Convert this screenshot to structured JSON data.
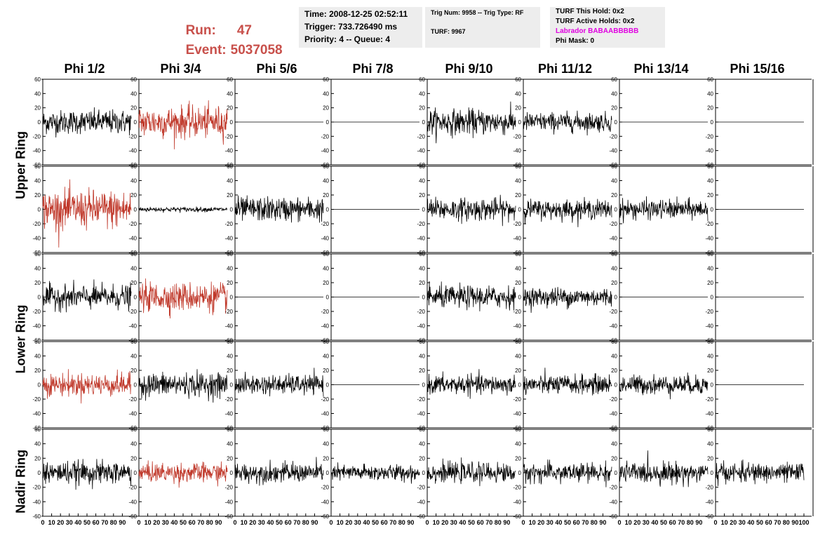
{
  "header": {
    "run_label": "Run:",
    "run_value": "47",
    "event_label": "Event:",
    "event_value": "5037058"
  },
  "info_time": {
    "time": "Time: 2008-12-25 02:52:11",
    "trigger": "Trigger: 733.726490 ms",
    "priority": "Priority: 4 -- Queue: 4"
  },
  "info_trig": {
    "trig": "Trig Num: 9958 -- Trig Type: RF",
    "turf": "TURF: 9967"
  },
  "info_turf": {
    "hold": "TURF This Hold: 0x2",
    "active": "TURF Active Holds: 0x2",
    "labrador": "Labrador BABAABBBBB",
    "mask": "Phi Mask: 0"
  },
  "colors": {
    "red_run": "#c8504b",
    "trace_black": "#000000",
    "trace_red": "#c0392b",
    "labrador": "#e000e0",
    "info_bg": "#ededed"
  },
  "columns": [
    "Phi 1/2",
    "Phi 3/4",
    "Phi 5/6",
    "Phi 7/8",
    "Phi 9/10",
    "Phi 11/12",
    "Phi 13/14",
    "Phi 15/16"
  ],
  "rows": [
    "Upper Ring",
    "Lower Ring",
    "Nadir Ring"
  ],
  "chart_data": {
    "type": "line",
    "layout": "5 rows x 8 columns of waveform panels",
    "xlim": [
      0,
      100
    ],
    "ylim": [
      -60,
      60
    ],
    "y_ticks": [
      -60,
      -40,
      -20,
      0,
      20,
      40,
      60
    ],
    "x_ticks": [
      0,
      10,
      20,
      30,
      40,
      50,
      60,
      70,
      80,
      90,
      100
    ],
    "panels": [
      [
        {
          "kind": "noise",
          "amp": 15,
          "color": "black"
        },
        {
          "kind": "noise",
          "amp": 20,
          "color": "red"
        },
        {
          "kind": "flat",
          "color": "black"
        },
        {
          "kind": "flat",
          "color": "black"
        },
        {
          "kind": "noise",
          "amp": 16,
          "color": "black"
        },
        {
          "kind": "noise",
          "amp": 12,
          "color": "black"
        },
        {
          "kind": "flat",
          "color": "black"
        },
        {
          "kind": "flat",
          "color": "black"
        }
      ],
      [
        {
          "kind": "noise",
          "amp": 24,
          "color": "red"
        },
        {
          "kind": "noise",
          "amp": 3,
          "color": "black"
        },
        {
          "kind": "noise",
          "amp": 15,
          "color": "black"
        },
        {
          "kind": "flat",
          "color": "black"
        },
        {
          "kind": "noise",
          "amp": 14,
          "color": "black"
        },
        {
          "kind": "noise",
          "amp": 12,
          "color": "black"
        },
        {
          "kind": "noise",
          "amp": 12,
          "color": "black"
        },
        {
          "kind": "flat",
          "color": "black"
        }
      ],
      [
        {
          "kind": "noise",
          "amp": 15,
          "color": "black"
        },
        {
          "kind": "noise",
          "amp": 18,
          "color": "red"
        },
        {
          "kind": "flat",
          "color": "black"
        },
        {
          "kind": "flat",
          "color": "black"
        },
        {
          "kind": "noise",
          "amp": 14,
          "color": "black"
        },
        {
          "kind": "noise",
          "amp": 12,
          "color": "black"
        },
        {
          "kind": "flat",
          "color": "black"
        },
        {
          "kind": "flat",
          "color": "black"
        }
      ],
      [
        {
          "kind": "noise",
          "amp": 14,
          "color": "red"
        },
        {
          "kind": "noise",
          "amp": 15,
          "color": "black"
        },
        {
          "kind": "noise",
          "amp": 12,
          "color": "black"
        },
        {
          "kind": "flat",
          "color": "black"
        },
        {
          "kind": "noise",
          "amp": 12,
          "color": "black"
        },
        {
          "kind": "noise",
          "amp": 12,
          "color": "black"
        },
        {
          "kind": "noise",
          "amp": 12,
          "color": "black"
        },
        {
          "kind": "flat",
          "color": "black"
        }
      ],
      [
        {
          "kind": "noise",
          "amp": 14,
          "color": "black"
        },
        {
          "kind": "noise",
          "amp": 12,
          "color": "red"
        },
        {
          "kind": "noise",
          "amp": 12,
          "color": "black"
        },
        {
          "kind": "noise",
          "amp": 10,
          "color": "black"
        },
        {
          "kind": "noise",
          "amp": 12,
          "color": "black"
        },
        {
          "kind": "noise",
          "amp": 12,
          "color": "black"
        },
        {
          "kind": "noise",
          "amp": 13,
          "color": "black"
        },
        {
          "kind": "noise",
          "amp": 12,
          "color": "black"
        }
      ]
    ]
  }
}
